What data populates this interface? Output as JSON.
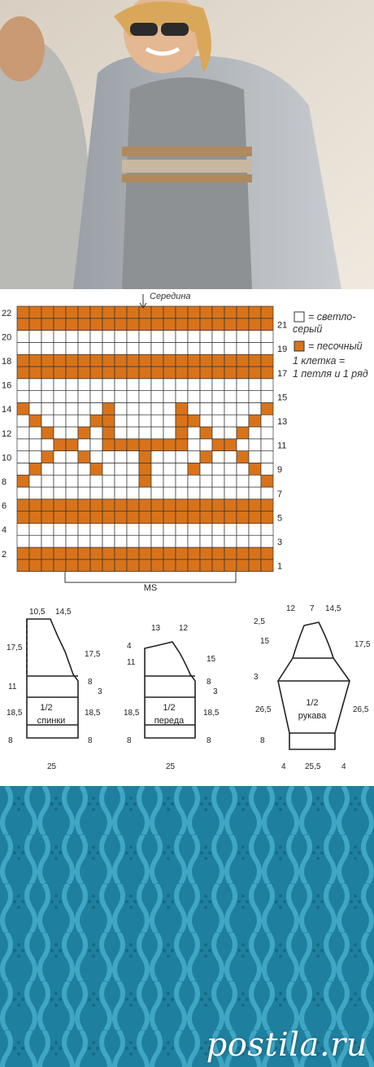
{
  "chart": {
    "top_label": "Середина",
    "bottom_label": "MS",
    "colors": {
      "light": "#ffffff",
      "sand": "#d8731a",
      "grid": "#333333"
    },
    "cols": 21,
    "rows": 22,
    "left_numbers": [
      "2",
      "4",
      "6",
      "8",
      "10",
      "12",
      "14",
      "16",
      "18",
      "20",
      "22"
    ],
    "right_numbers": [
      "1",
      "3",
      "5",
      "7",
      "9",
      "11",
      "13",
      "15",
      "17",
      "19",
      "21"
    ],
    "legend": {
      "light_line1": "= светло-",
      "light_line2": "серый",
      "sand": "= песочный",
      "cell_line1": "1 клетка =",
      "cell_line2": "1 петля и 1 ряд"
    }
  },
  "schematics": {
    "back": {
      "top_left": "10,5",
      "top_right": "14,5",
      "left": [
        "17,5",
        "11",
        "18,5",
        "8"
      ],
      "right": [
        "17,5",
        "8",
        "3",
        "18,5",
        "8"
      ],
      "label_line1": "1/2",
      "label_line2": "спинки",
      "bottom": "25"
    },
    "front": {
      "top_left": "13",
      "top_right": "12",
      "left": [
        "4",
        "11",
        "18,5",
        "8"
      ],
      "right": [
        "15",
        "8",
        "3",
        "18,5",
        "8"
      ],
      "label_line1": "1/2",
      "label_line2": "переда",
      "bottom": "25"
    },
    "sleeve": {
      "top": [
        "12",
        "7",
        "14,5"
      ],
      "left": [
        "2,5",
        "15",
        "3",
        "26,5",
        "8"
      ],
      "right": [
        "17,5",
        "26,5"
      ],
      "label_line1": "1/2",
      "label_line2": "рукава",
      "bottom": [
        "4",
        "25,5",
        "4"
      ]
    }
  },
  "watermark": "postila.ru"
}
